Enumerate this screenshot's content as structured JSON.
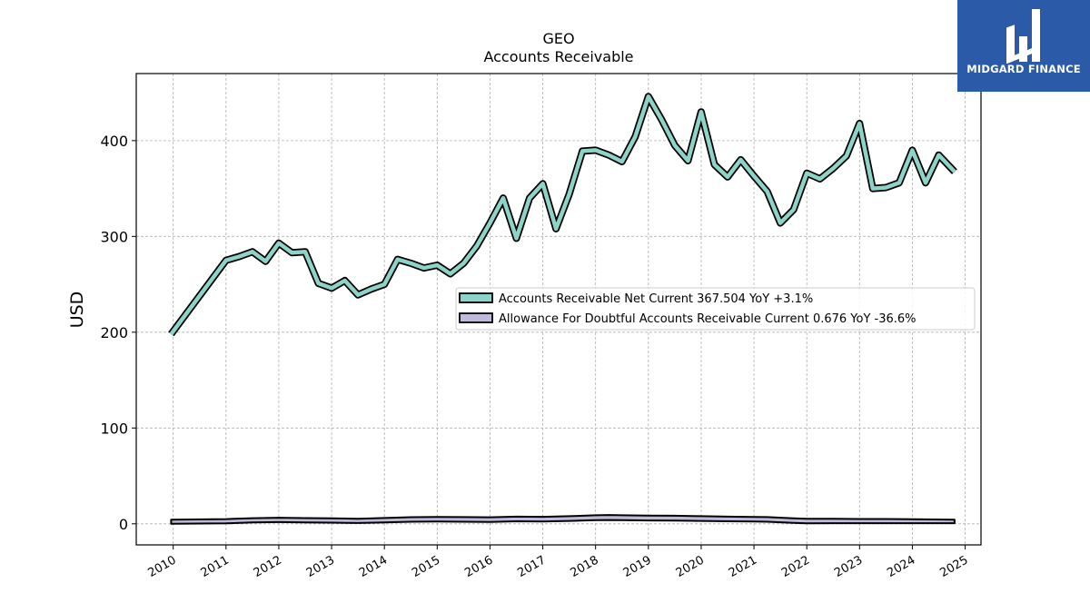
{
  "brand": {
    "name": "MIDGARD FINANCE",
    "color": "#2a5aa8"
  },
  "chart_data": {
    "type": "line",
    "title": "GEO",
    "subtitle": "Accounts Receivable",
    "xlabel": "",
    "ylabel": "USD",
    "xlim": [
      2009.3,
      2025.3
    ],
    "ylim": [
      -22,
      470
    ],
    "yticks": [
      0,
      100,
      200,
      300,
      400
    ],
    "xticks": [
      "2010",
      "2011",
      "2012",
      "2013",
      "2014",
      "2015",
      "2016",
      "2017",
      "2018",
      "2019",
      "2020",
      "2021",
      "2022",
      "2023",
      "2024",
      "2025"
    ],
    "grid": true,
    "legend_position": "center-right",
    "series": [
      {
        "name": "Accounts Receivable Net Current",
        "legend_label": "Accounts Receivable Net Current  367.504 YoY +3.1%",
        "color": "#8dd3c7",
        "x": [
          2009.96,
          2011.0,
          2011.25,
          2011.5,
          2011.75,
          2012.0,
          2012.25,
          2012.5,
          2012.75,
          2013.0,
          2013.25,
          2013.5,
          2013.75,
          2014.0,
          2014.25,
          2014.5,
          2014.75,
          2015.0,
          2015.25,
          2015.5,
          2015.75,
          2016.0,
          2016.25,
          2016.5,
          2016.75,
          2017.0,
          2017.25,
          2017.5,
          2017.75,
          2018.0,
          2018.25,
          2018.5,
          2018.75,
          2019.0,
          2019.25,
          2019.5,
          2019.75,
          2020.0,
          2020.25,
          2020.5,
          2020.75,
          2021.0,
          2021.25,
          2021.5,
          2021.75,
          2022.0,
          2022.25,
          2022.5,
          2022.75,
          2023.0,
          2023.25,
          2023.5,
          2023.75,
          2024.0,
          2024.25,
          2024.5,
          2024.8
        ],
        "values": [
          198,
          275,
          279,
          284,
          274,
          293,
          283,
          284,
          251,
          246,
          254,
          239,
          245,
          250,
          276,
          272,
          267,
          270,
          261,
          272,
          290,
          314,
          340,
          298,
          340,
          355,
          308,
          344,
          389,
          390,
          385,
          378,
          404,
          446,
          422,
          395,
          379,
          430,
          375,
          362,
          380,
          363,
          347,
          314,
          328,
          366,
          360,
          371,
          384,
          418,
          350,
          351,
          356,
          390,
          356,
          385,
          367.504
        ]
      },
      {
        "name": "Allowance For Doubtful Accounts Receivable Current",
        "legend_label": "Allowance For Doubtful Accounts Receivable Current  0.676 YoY -36.6%",
        "color": "#bebada",
        "x": [
          2009.96,
          2011.0,
          2011.5,
          2012.0,
          2012.5,
          2013.0,
          2013.5,
          2014.0,
          2014.5,
          2015.0,
          2015.5,
          2016.0,
          2016.5,
          2017.0,
          2017.5,
          2018.0,
          2018.25,
          2018.5,
          2019.0,
          2019.5,
          2020.0,
          2020.5,
          2021.0,
          2021.25,
          2021.75,
          2022.0,
          2022.5,
          2023.0,
          2023.5,
          2024.0,
          2024.8
        ],
        "lower": [
          0,
          0.5,
          1.5,
          1.8,
          1.5,
          1.2,
          0.8,
          1.5,
          2.2,
          2.4,
          2.2,
          2.0,
          2.6,
          2.4,
          3.0,
          3.8,
          4.0,
          3.8,
          3.5,
          3.3,
          3.0,
          2.6,
          2.4,
          2.2,
          1.0,
          0.6,
          0.7,
          0.7,
          0.7,
          0.7,
          0.676
        ],
        "upper": [
          4.4,
          4.9,
          5.9,
          6.3,
          6.0,
          5.7,
          5.3,
          6.1,
          6.9,
          7.2,
          7.0,
          6.8,
          7.5,
          7.3,
          8.0,
          8.9,
          9.2,
          8.9,
          8.6,
          8.4,
          8.0,
          7.5,
          7.2,
          7.0,
          5.7,
          5.2,
          5.2,
          5.0,
          5.0,
          4.8,
          4.4
        ]
      }
    ]
  }
}
